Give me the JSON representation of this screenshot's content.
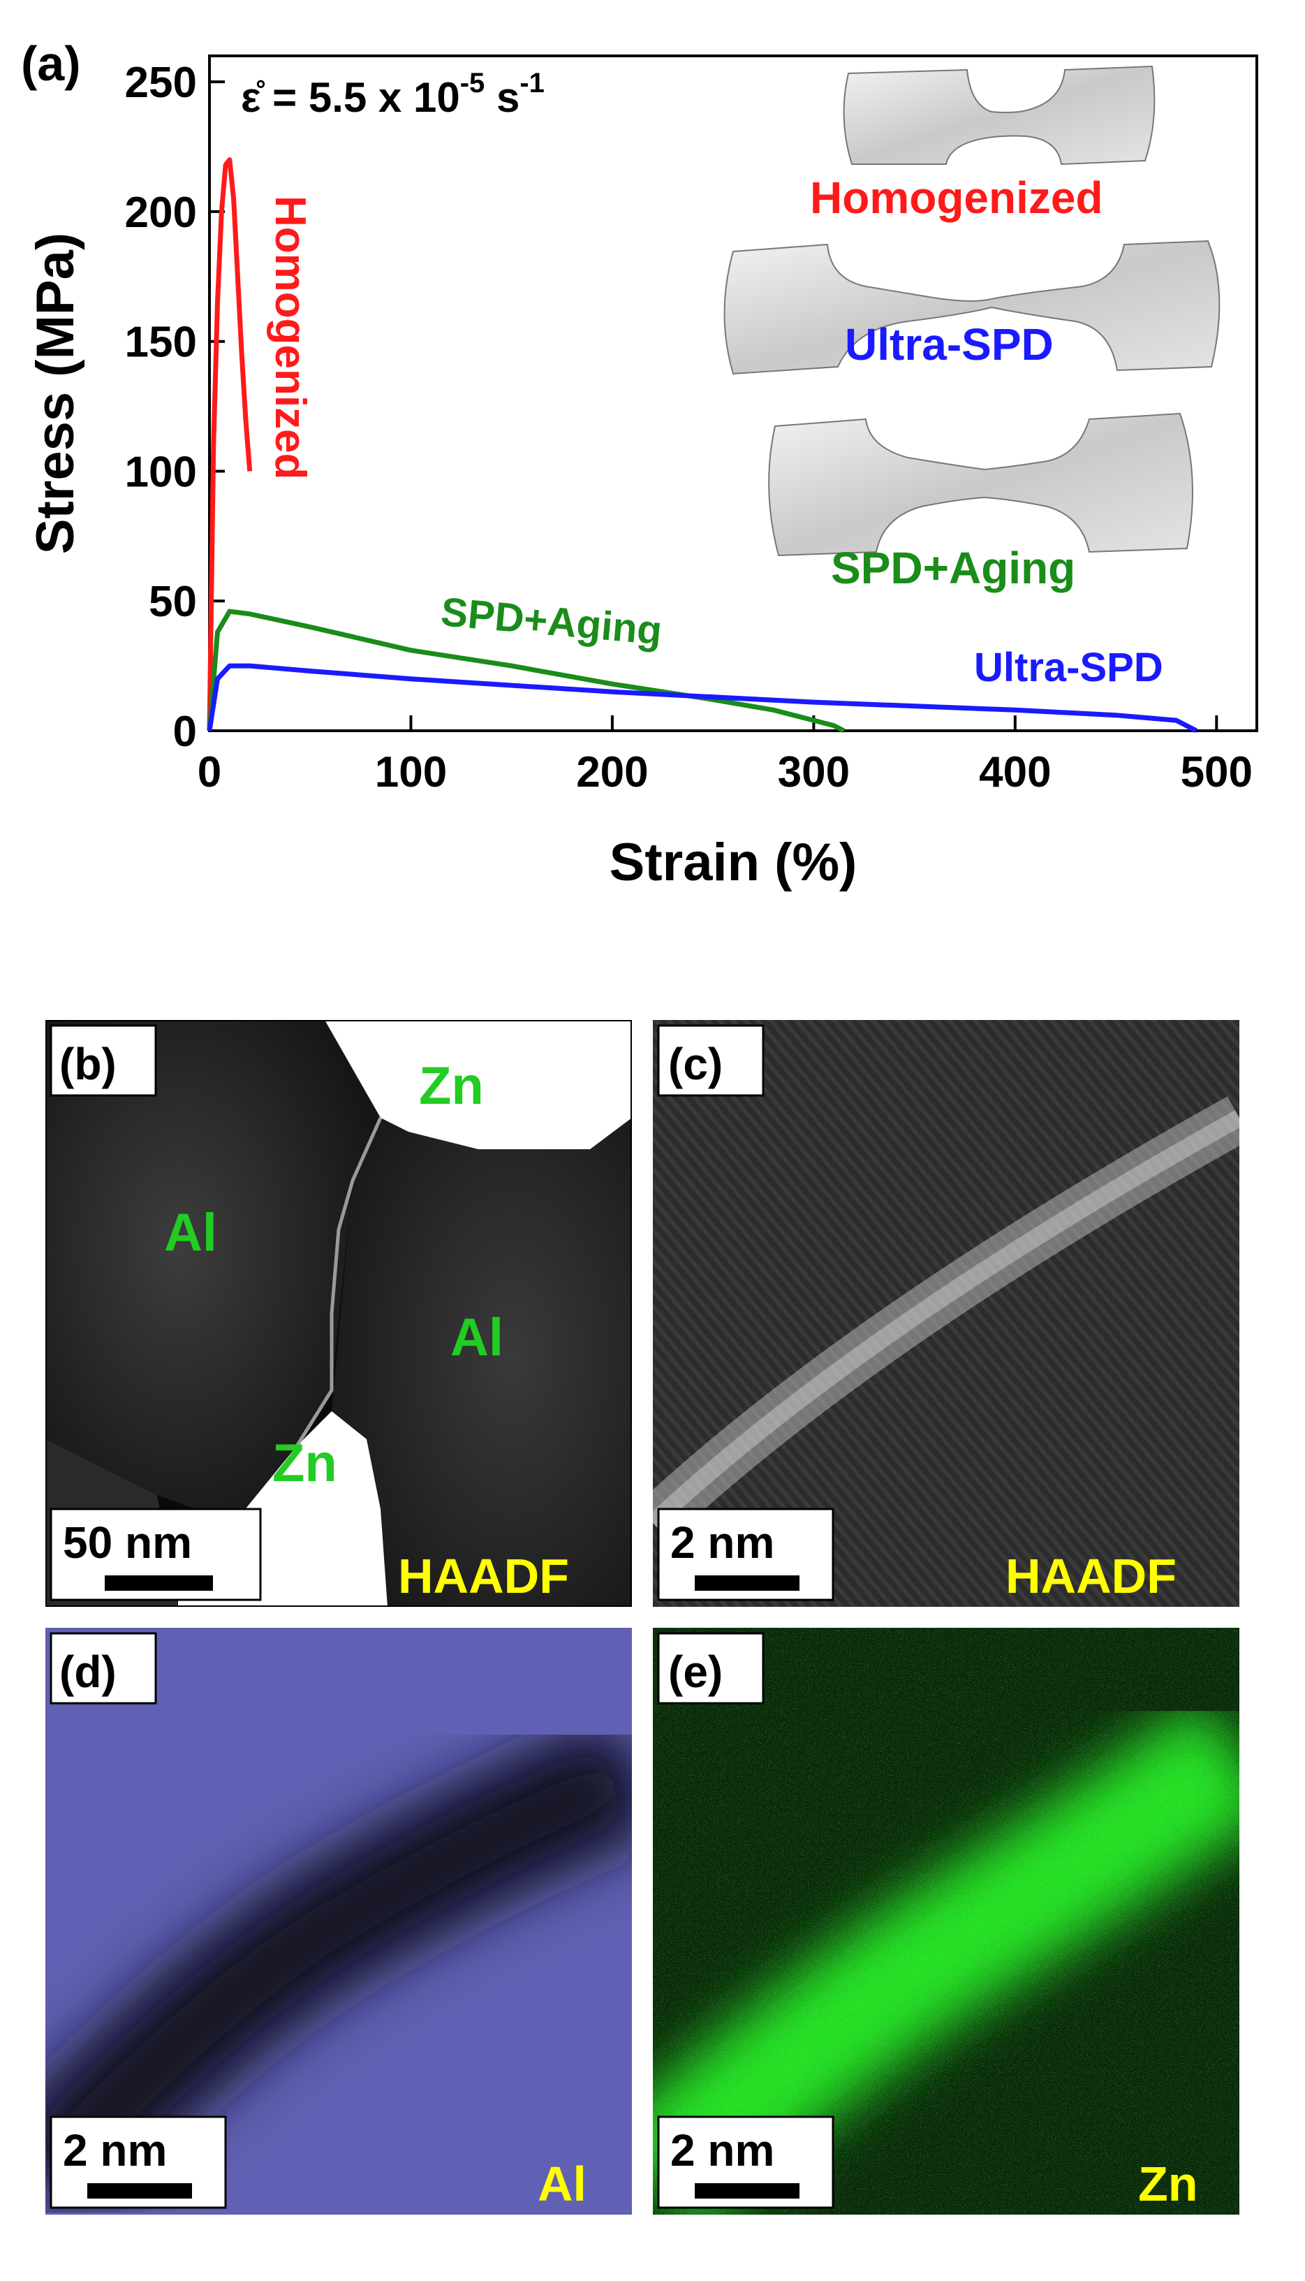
{
  "chart_data": {
    "type": "line",
    "panel_label": "(a)",
    "title": "",
    "xlabel": "Strain (%)",
    "ylabel": "Stress (MPa)",
    "xlim": [
      0,
      520
    ],
    "ylim": [
      0,
      260
    ],
    "xticks": [
      0,
      100,
      200,
      300,
      400,
      500
    ],
    "yticks": [
      0,
      50,
      100,
      150,
      200,
      250
    ],
    "x_tick_labels": [
      "0",
      "100",
      "200",
      "300",
      "400",
      "500"
    ],
    "y_tick_labels": [
      "0",
      "50",
      "100",
      "150",
      "200",
      "250"
    ],
    "strain_rate": {
      "prefix": "ε̊ = 5.5 x 10",
      "exponent": "-5",
      "unit": " s",
      "unit_exponent": "-1"
    },
    "series": [
      {
        "name": "Homogenized",
        "color": "#ff1a1a",
        "x": [
          0,
          2,
          4,
          6,
          8,
          10,
          12,
          14,
          16,
          18,
          20
        ],
        "y": [
          0,
          110,
          165,
          200,
          218,
          220,
          205,
          175,
          145,
          120,
          100
        ]
      },
      {
        "name": "SPD+Aging",
        "color": "#1a8c1a",
        "x": [
          0,
          4,
          10,
          20,
          50,
          100,
          150,
          200,
          250,
          280,
          300,
          310,
          315
        ],
        "y": [
          0,
          38,
          46,
          45,
          40,
          31,
          25,
          18,
          12,
          8,
          4,
          2,
          0
        ]
      },
      {
        "name": "Ultra-SPD",
        "color": "#1a1aff",
        "x": [
          0,
          4,
          10,
          20,
          50,
          100,
          200,
          300,
          400,
          450,
          480,
          490
        ],
        "y": [
          0,
          20,
          25,
          25,
          23,
          20,
          15,
          11,
          8,
          6,
          4,
          0
        ]
      }
    ],
    "annotations": [
      "Homogenized",
      "SPD+Aging",
      "Ultra-SPD"
    ],
    "inset_labels": [
      "Homogenized",
      "Ultra-SPD",
      "SPD+Aging"
    ]
  },
  "panels": [
    {
      "label": "(b)",
      "scale": "50 nm",
      "tag": "HAADF",
      "labels": [
        "Zn",
        "Al",
        "Al",
        "Zn"
      ]
    },
    {
      "label": "(c)",
      "scale": "2 nm",
      "tag": "HAADF"
    },
    {
      "label": "(d)",
      "scale": "2 nm",
      "tag": "Al"
    },
    {
      "label": "(e)",
      "scale": "2 nm",
      "tag": "Zn"
    }
  ],
  "colors": {
    "haadf_tag": "#ffff00",
    "phase_label": "#22cc22",
    "al_map": "#5a5aaa",
    "zn_map": "#22dd22"
  }
}
